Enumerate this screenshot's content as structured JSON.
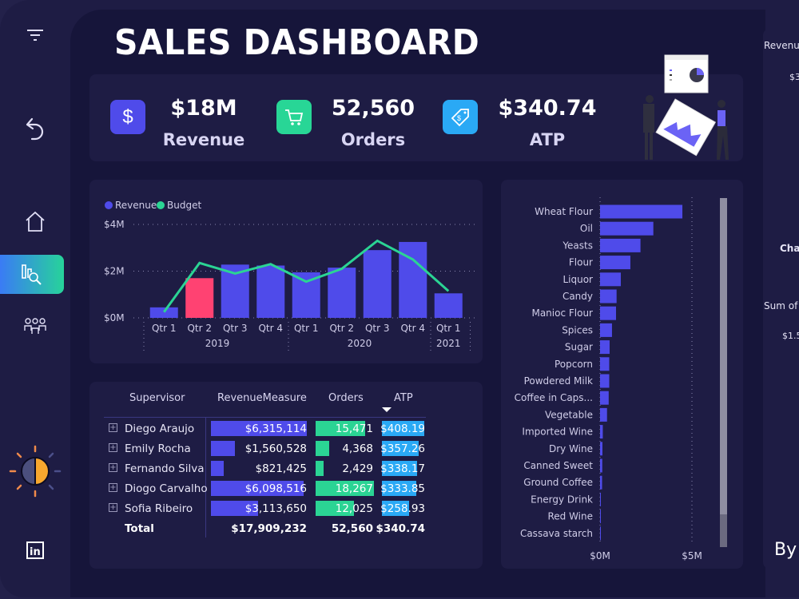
{
  "title": "SALES DASHBOARD",
  "sidebar": {
    "items": [
      {
        "name": "filter",
        "icon": "filter-icon"
      },
      {
        "name": "back",
        "icon": "undo-arrow-icon"
      },
      {
        "name": "home",
        "icon": "home-icon"
      },
      {
        "name": "analysis",
        "icon": "chart-search-icon",
        "active": true
      },
      {
        "name": "team",
        "icon": "people-icon"
      },
      {
        "name": "theme",
        "icon": "sun-moon-theme-icon"
      },
      {
        "name": "linkedin",
        "icon": "linkedin-icon"
      }
    ]
  },
  "kpis": [
    {
      "value": "$18M",
      "label": "Revenue",
      "icon": "dollar-icon",
      "color": "#4f4bea"
    },
    {
      "value": "52,560",
      "label": "Orders",
      "icon": "cart-icon",
      "color": "#28d696"
    },
    {
      "value": "$340.74",
      "label": "ATP",
      "icon": "price-tag-icon",
      "color": "#2aa9f5"
    }
  ],
  "colors": {
    "revenue": "#4f4bea",
    "highlight": "#ff4272",
    "budget": "#2bd494",
    "atp": "#2aa9f5"
  },
  "chart_data": [
    {
      "type": "bar",
      "legend": [
        "Revenue",
        "Budget"
      ],
      "legend_position": "top-left",
      "categories": [
        "Qtr 1",
        "Qtr 2",
        "Qtr 3",
        "Qtr 4",
        "Qtr 1",
        "Qtr 2",
        "Qtr 3",
        "Qtr 4",
        "Qtr 1"
      ],
      "years": [
        {
          "label": "2019",
          "span": 4
        },
        {
          "label": "2020",
          "span": 4
        },
        {
          "label": "2021",
          "span": 1
        }
      ],
      "series": [
        {
          "name": "Revenue",
          "type": "bar",
          "values": [
            0.45,
            1.7,
            2.28,
            2.24,
            1.95,
            2.15,
            2.9,
            3.25,
            1.05
          ],
          "highlight_index": 1
        },
        {
          "name": "Budget",
          "type": "line",
          "values": [
            0.25,
            2.35,
            1.9,
            2.3,
            1.55,
            2.1,
            3.3,
            2.5,
            1.15
          ]
        }
      ],
      "ylim": [
        0,
        4
      ],
      "yticks": [
        "$0M",
        "$2M",
        "$4M"
      ],
      "grid": true
    },
    {
      "type": "bar",
      "orientation": "horizontal",
      "categories": [
        "Wheat Flour",
        "Oil",
        "Yeasts",
        "Flour",
        "Liquor",
        "Candy",
        "Manioc Flour",
        "Spices",
        "Sugar",
        "Popcorn",
        "Powdered Milk",
        "Coffee in Caps...",
        "Vegetable",
        "Imported Wine",
        "Dry Wine",
        "Canned Sweet",
        "Ground Coffee",
        "Energy Drink",
        "Red Wine",
        "Cassava starch"
      ],
      "values": [
        4.48,
        2.9,
        2.2,
        1.65,
        1.13,
        0.9,
        0.87,
        0.65,
        0.52,
        0.5,
        0.5,
        0.47,
        0.38,
        0.15,
        0.13,
        0.12,
        0.11,
        0.03,
        0.02,
        0.01
      ],
      "xlim": [
        0,
        5
      ],
      "xticks": [
        "$0M",
        "$5M"
      ],
      "grid": true
    }
  ],
  "table": {
    "headers": [
      "Supervisor",
      "RevenueMeasure",
      "Orders",
      "ATP"
    ],
    "sort": "ATP descending",
    "rows": [
      {
        "name": "Diego Araujo",
        "revenue": "$6,315,114",
        "rev": 6315114,
        "orders": "15,471",
        "ord": 15471,
        "atp": "$408.19",
        "atpv": 408.19
      },
      {
        "name": "Emily Rocha",
        "revenue": "$1,560,528",
        "rev": 1560528,
        "orders": "4,368",
        "ord": 4368,
        "atp": "$357.26",
        "atpv": 357.26
      },
      {
        "name": "Fernando Silva",
        "revenue": "$821,425",
        "rev": 821425,
        "orders": "2,429",
        "ord": 2429,
        "atp": "$338.17",
        "atpv": 338.17
      },
      {
        "name": "Diogo Carvalho",
        "revenue": "$6,098,516",
        "rev": 6098516,
        "orders": "18,267",
        "ord": 18267,
        "atp": "$333.85",
        "atpv": 333.85
      },
      {
        "name": "Sofia Ribeiro",
        "revenue": "$3,113,650",
        "rev": 3113650,
        "orders": "12,025",
        "ord": 12025,
        "atp": "$258.93",
        "atpv": 258.93
      }
    ],
    "total": {
      "label": "Total",
      "revenue": "$17,909,232",
      "orders": "52,560",
      "atp": "$340.74"
    }
  },
  "right_panel": {
    "texts": [
      "Revenu",
      "$3",
      "Cha",
      "Sum of",
      "$1.5",
      "By"
    ]
  }
}
